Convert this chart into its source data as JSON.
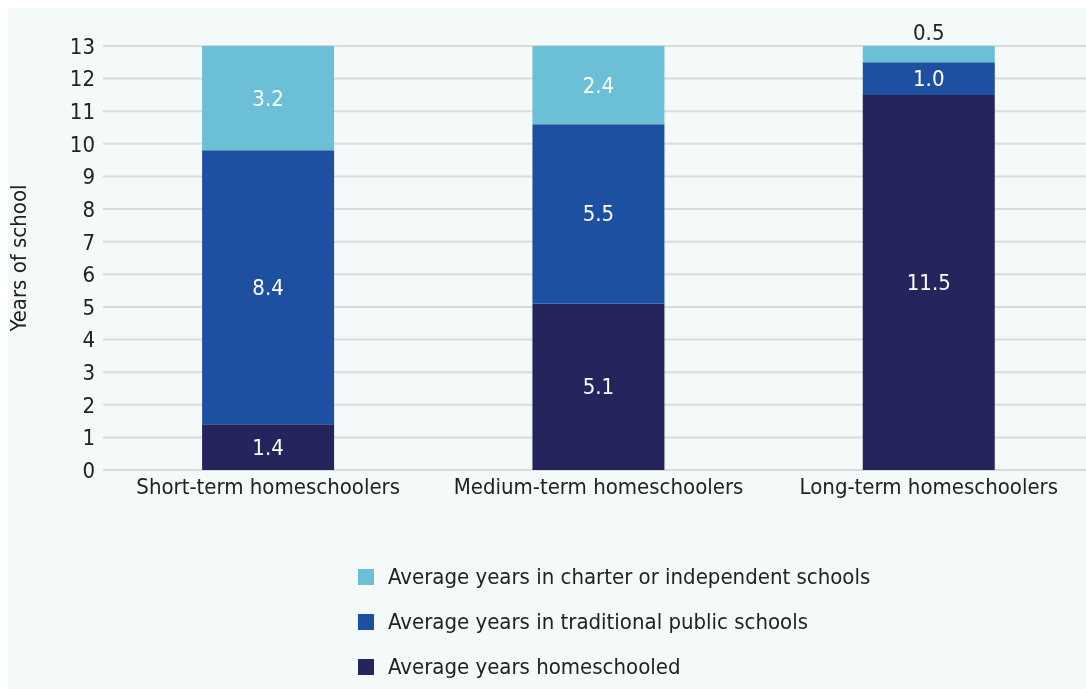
{
  "chart_data": {
    "type": "bar",
    "stacked": true,
    "ylabel": "Years of school",
    "categories": [
      "Short-term homeschoolers",
      "Medium-term homeschoolers",
      "Long-term homeschoolers"
    ],
    "series": [
      {
        "name": "Average years homeschooled",
        "color": "#25245c",
        "values": [
          1.4,
          5.1,
          11.5
        ],
        "value_labels": [
          "1.4",
          "5.1",
          "11.5"
        ]
      },
      {
        "name": "Average years in traditional public schools",
        "color": "#1e50a2",
        "values": [
          8.4,
          5.5,
          1.0
        ],
        "value_labels": [
          "8.4",
          "5.5",
          "1.0"
        ]
      },
      {
        "name": "Average years in charter or independent schools",
        "color": "#6bc0d5",
        "values": [
          3.2,
          2.4,
          0.5
        ],
        "value_labels": [
          "3.2",
          "2.4",
          "0.5"
        ]
      }
    ],
    "ylim": [
      0,
      13
    ],
    "yticks": [
      0,
      1,
      2,
      3,
      4,
      5,
      6,
      7,
      8,
      9,
      10,
      11,
      12,
      13
    ],
    "grid": "y",
    "legend": "bottom"
  }
}
